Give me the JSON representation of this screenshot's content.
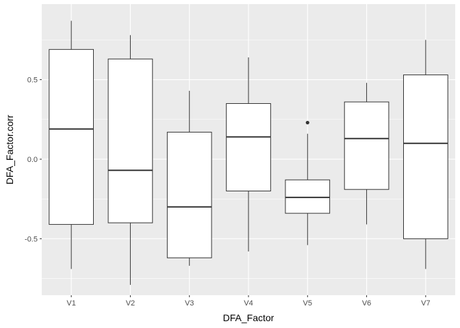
{
  "chart_data": {
    "type": "boxplot",
    "title": "",
    "xlabel": "DFA_Factor",
    "ylabel": "DFA_Factor.corr",
    "ylim": [
      -0.855,
      0.975
    ],
    "y_ticks": [
      -0.5,
      0.0,
      0.5
    ],
    "y_tick_labels": [
      "-0.5",
      "0.0",
      "0.5"
    ],
    "grid": true,
    "categories": [
      "V1",
      "V2",
      "V3",
      "V4",
      "V5",
      "V6",
      "V7"
    ],
    "boxes": [
      {
        "category": "V1",
        "whisker_low": -0.69,
        "q1": -0.41,
        "median": 0.19,
        "q3": 0.69,
        "whisker_high": 0.87,
        "outliers": []
      },
      {
        "category": "V2",
        "whisker_low": -0.79,
        "q1": -0.4,
        "median": -0.07,
        "q3": 0.63,
        "whisker_high": 0.78,
        "outliers": []
      },
      {
        "category": "V3",
        "whisker_low": -0.67,
        "q1": -0.62,
        "median": -0.3,
        "q3": 0.17,
        "whisker_high": 0.43,
        "outliers": []
      },
      {
        "category": "V4",
        "whisker_low": -0.58,
        "q1": -0.2,
        "median": 0.14,
        "q3": 0.35,
        "whisker_high": 0.64,
        "outliers": []
      },
      {
        "category": "V5",
        "whisker_low": -0.54,
        "q1": -0.34,
        "median": -0.24,
        "q3": -0.13,
        "whisker_high": 0.16,
        "outliers": [
          0.23
        ]
      },
      {
        "category": "V6",
        "whisker_low": -0.41,
        "q1": -0.19,
        "median": 0.13,
        "q3": 0.36,
        "whisker_high": 0.48,
        "outliers": []
      },
      {
        "category": "V7",
        "whisker_low": -0.69,
        "q1": -0.5,
        "median": 0.1,
        "q3": 0.53,
        "whisker_high": 0.75,
        "outliers": []
      }
    ]
  },
  "colors": {
    "panel_background": "#ebebeb",
    "grid_major": "#ffffff",
    "box_fill": "#ffffff",
    "box_stroke": "#333333",
    "tick_label": "#4d4d4d",
    "axis_title": "#000000"
  }
}
